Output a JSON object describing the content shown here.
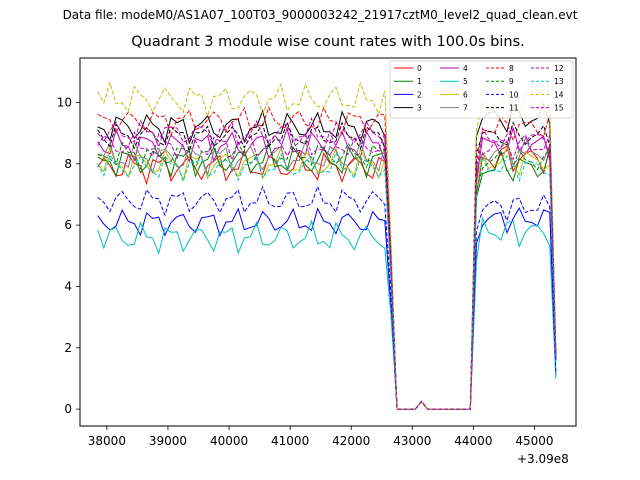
{
  "data_file_label": "Data file: modeM0/AS1A07_100T03_9000003242_21917cztM0_level2_quad_clean.evt",
  "chart_data": {
    "type": "line",
    "title": "Quadrant 3 module wise count rates with 100.0s bins.",
    "xlabel": "",
    "ylabel": "",
    "x_offset_label": "+3.09e8",
    "xlim": [
      37560,
      45680
    ],
    "ylim": [
      -0.55,
      11.45
    ],
    "xticks": [
      38000,
      39000,
      40000,
      41000,
      42000,
      43000,
      44000,
      45000
    ],
    "yticks": [
      0,
      2,
      4,
      6,
      8,
      10
    ],
    "legend_position": "top-right",
    "segments": [
      {
        "start": 37850,
        "end": 42550
      },
      {
        "start": 42650,
        "end": 43950
      },
      {
        "start": 44050,
        "end": 45350
      }
    ],
    "gap_values": [
      {
        "x": 42750,
        "y": 0.0
      },
      {
        "x": 42850,
        "y": 0.0
      },
      {
        "x": 42950,
        "y": 0.0
      },
      {
        "x": 43050,
        "y": 0.0
      },
      {
        "x": 43150,
        "y": 0.25
      },
      {
        "x": 43250,
        "y": 0.0
      },
      {
        "x": 43350,
        "y": 0.0
      },
      {
        "x": 43450,
        "y": 0.0
      },
      {
        "x": 43550,
        "y": 0.0
      },
      {
        "x": 43650,
        "y": 0.0
      },
      {
        "x": 43750,
        "y": 0.0
      },
      {
        "x": 43850,
        "y": 0.0
      }
    ],
    "series": [
      {
        "name": "0",
        "color": "#ff0000",
        "style": "solid",
        "mean1": 7.9,
        "mean2": 8.2,
        "amp": 0.35,
        "edge": 1.7,
        "phase": 0.3
      },
      {
        "name": "1",
        "color": "#008000",
        "style": "solid",
        "mean1": 8.1,
        "mean2": 7.9,
        "amp": 0.35,
        "edge": 1.6,
        "phase": 1.1
      },
      {
        "name": "2",
        "color": "#0000ff",
        "style": "solid",
        "mean1": 6.1,
        "mean2": 6.2,
        "amp": 0.3,
        "edge": 1.1,
        "phase": 2.0
      },
      {
        "name": "3",
        "color": "#000000",
        "style": "solid",
        "mean1": 9.2,
        "mean2": 9.5,
        "amp": 0.35,
        "edge": 1.9,
        "phase": 2.7
      },
      {
        "name": "4",
        "color": "#bf00bf",
        "style": "solid",
        "mean1": 8.6,
        "mean2": 8.6,
        "amp": 0.35,
        "edge": 1.7,
        "phase": 3.3
      },
      {
        "name": "5",
        "color": "#00bfbf",
        "style": "solid",
        "mean1": 5.6,
        "mean2": 5.8,
        "amp": 0.35,
        "edge": 1.0,
        "phase": 4.1
      },
      {
        "name": "6",
        "color": "#bfbf00",
        "style": "solid",
        "mean1": 8.0,
        "mean2": 8.1,
        "amp": 0.35,
        "edge": 1.6,
        "phase": 4.8
      },
      {
        "name": "7",
        "color": "#808080",
        "style": "solid",
        "mean1": 8.2,
        "mean2": 8.4,
        "amp": 0.35,
        "edge": 1.6,
        "phase": 5.4
      },
      {
        "name": "8",
        "color": "#ff0000",
        "style": "dashed",
        "mean1": 9.4,
        "mean2": 9.2,
        "amp": 0.3,
        "edge": 1.8,
        "phase": 0.7
      },
      {
        "name": "9",
        "color": "#008000",
        "style": "dashed",
        "mean1": 8.3,
        "mean2": 8.1,
        "amp": 0.3,
        "edge": 1.6,
        "phase": 1.6
      },
      {
        "name": "10",
        "color": "#0000ff",
        "style": "dashed",
        "mean1": 6.8,
        "mean2": 6.6,
        "amp": 0.3,
        "edge": 1.2,
        "phase": 2.4
      },
      {
        "name": "11",
        "color": "#000000",
        "style": "dashed",
        "mean1": 8.9,
        "mean2": 8.9,
        "amp": 0.3,
        "edge": 1.7,
        "phase": 3.0
      },
      {
        "name": "12",
        "color": "#bf00bf",
        "style": "dashed",
        "mean1": 9.0,
        "mean2": 8.8,
        "amp": 0.3,
        "edge": 1.8,
        "phase": 3.9
      },
      {
        "name": "13",
        "color": "#00bfbf",
        "style": "dashed",
        "mean1": 7.9,
        "mean2": 7.9,
        "amp": 0.3,
        "edge": 1.5,
        "phase": 4.5
      },
      {
        "name": "14",
        "color": "#bfbf00",
        "style": "dashed",
        "mean1": 10.1,
        "mean2": 9.9,
        "amp": 0.35,
        "edge": 2.0,
        "phase": 5.1
      },
      {
        "name": "15",
        "color": "#bf00bf",
        "style": "dashed",
        "mean1": 8.6,
        "mean2": 8.6,
        "amp": 0.3,
        "edge": 1.7,
        "phase": 5.9
      }
    ]
  }
}
